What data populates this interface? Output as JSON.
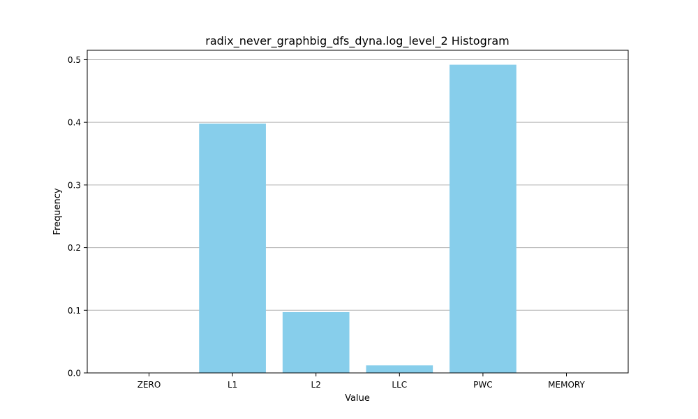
{
  "chart_data": {
    "type": "bar",
    "title": "radix_never_graphbig_dfs_dyna.log_level_2 Histogram",
    "xlabel": "Value",
    "ylabel": "Frequency",
    "categories": [
      "ZERO",
      "L1",
      "L2",
      "LLC",
      "PWC",
      "MEMORY"
    ],
    "values": [
      0.0,
      0.398,
      0.097,
      0.012,
      0.492,
      0.0
    ],
    "ylim": [
      0,
      0.515
    ],
    "yticks": [
      0.0,
      0.1,
      0.2,
      0.3,
      0.4,
      0.5
    ],
    "ytick_labels": [
      "0.0",
      "0.1",
      "0.2",
      "0.3",
      "0.4",
      "0.5"
    ],
    "grid": "y-axis",
    "legend": "none",
    "colors": {
      "bar": "#87ceeb",
      "grid": "#b0b0b0",
      "axis": "#000000"
    }
  }
}
